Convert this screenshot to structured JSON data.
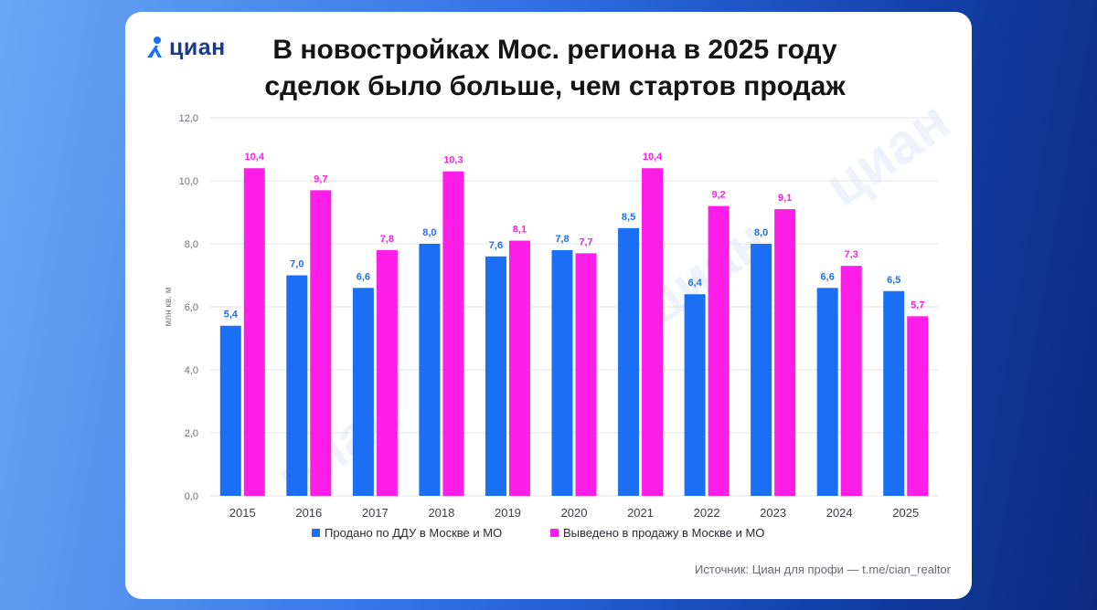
{
  "logo": {
    "text": "циан",
    "icon": "cian-pin-logo-icon"
  },
  "title": {
    "line1": "В новостройках Мос. региона в 2025 году",
    "line2": "сделок было больше, чем стартов продаж"
  },
  "watermark_text": "циан",
  "source": "Источник: Циан для профи — t.me/cian_realtor",
  "colors": {
    "sold": "#1b6ff5",
    "launched": "#ff1ee8",
    "title": "#141414",
    "brand": "#1b3a8a"
  },
  "chart_data": {
    "type": "bar",
    "title": "В новостройках Мос. региона в 2025 году сделок было больше, чем стартов продаж",
    "ylabel": "млн кв. м",
    "xlabel": "",
    "ylim": [
      0,
      12
    ],
    "yticks": [
      "0,0",
      "2,0",
      "4,0",
      "6,0",
      "8,0",
      "10,0",
      "12,0"
    ],
    "grid": true,
    "legend_position": "bottom",
    "categories": [
      "2015",
      "2016",
      "2017",
      "2018",
      "2019",
      "2020",
      "2021",
      "2022",
      "2023",
      "2024",
      "2025"
    ],
    "series": [
      {
        "name": "Продано по ДДУ в Москве и МО",
        "color": "#1b6ff5",
        "values": [
          5.4,
          7.0,
          6.6,
          8.0,
          7.6,
          7.8,
          8.5,
          6.4,
          8.0,
          6.6,
          6.5
        ],
        "labels": [
          "5,4",
          "7,0",
          "6,6",
          "8,0",
          "7,6",
          "7,8",
          "8,5",
          "6,4",
          "8,0",
          "6,6",
          "6,5"
        ]
      },
      {
        "name": "Выведено в продажу в Москве и МО",
        "color": "#ff1ee8",
        "values": [
          10.4,
          9.7,
          7.8,
          10.3,
          8.1,
          7.7,
          10.4,
          9.2,
          9.1,
          7.3,
          5.7
        ],
        "labels": [
          "10,4",
          "9,7",
          "7,8",
          "10,3",
          "8,1",
          "7,7",
          "10,4",
          "9,2",
          "9,1",
          "7,3",
          "5,7"
        ]
      }
    ]
  }
}
